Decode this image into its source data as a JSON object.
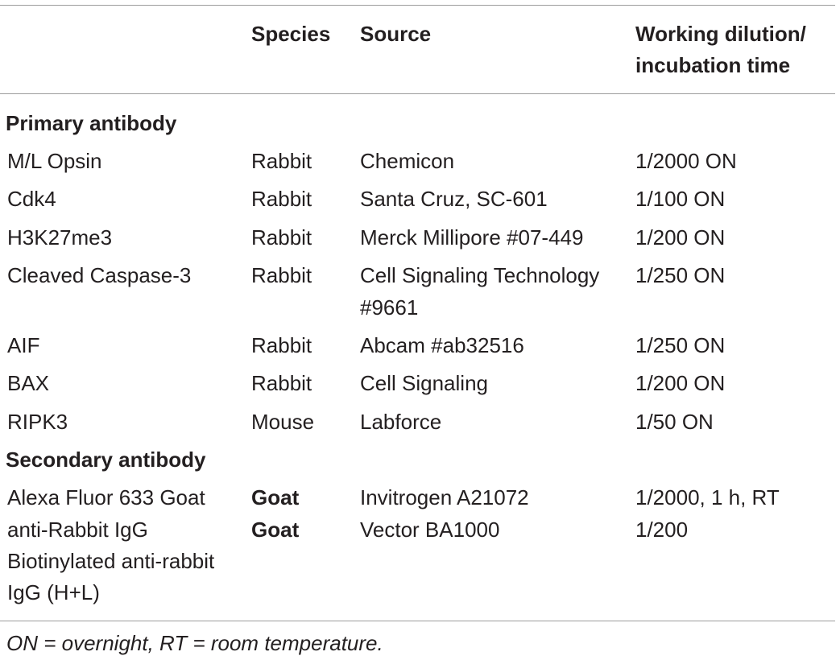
{
  "header": {
    "col_label": "",
    "col_species": "Species",
    "col_source": "Source",
    "col_dilution_line1": "Working dilution/",
    "col_dilution_line2": "incubation time"
  },
  "sections": {
    "primary": {
      "title": "Primary antibody",
      "rows": [
        {
          "name": "M/L Opsin",
          "species": "Rabbit",
          "source": "Chemicon",
          "source_line2": "",
          "dilution": "1/2000 ON"
        },
        {
          "name": "Cdk4",
          "species": "Rabbit",
          "source": "Santa Cruz, SC-601",
          "source_line2": "",
          "dilution": "1/100 ON"
        },
        {
          "name": "H3K27me3",
          "species": "Rabbit",
          "source": "Merck Millipore #07-449",
          "source_line2": "",
          "dilution": "1/200 ON"
        },
        {
          "name": "Cleaved Caspase-3",
          "species": "Rabbit",
          "source": "Cell Signaling Technology",
          "source_line2": "#9661",
          "dilution": "1/250 ON"
        },
        {
          "name": "AIF",
          "species": "Rabbit",
          "source": "Abcam #ab32516",
          "source_line2": "",
          "dilution": "1/250 ON"
        },
        {
          "name": "BAX",
          "species": "Rabbit",
          "source": "Cell Signaling",
          "source_line2": "",
          "dilution": "1/200 ON"
        },
        {
          "name": "RIPK3",
          "species": "Mouse",
          "source": "Labforce",
          "source_line2": "",
          "dilution": "1/50 ON"
        }
      ]
    },
    "secondary": {
      "title": "Secondary antibody",
      "name_lines": [
        "Alexa Fluor 633 Goat",
        "anti-Rabbit IgG",
        "Biotinylated anti-rabbit",
        "IgG (H+L)"
      ],
      "species": [
        "Goat",
        "Goat"
      ],
      "sources": [
        "Invitrogen A21072",
        "Vector BA1000"
      ],
      "dilutions": [
        "1/2000, 1 h, RT",
        "1/200"
      ]
    }
  },
  "footnote": "ON = overnight, RT = room temperature."
}
